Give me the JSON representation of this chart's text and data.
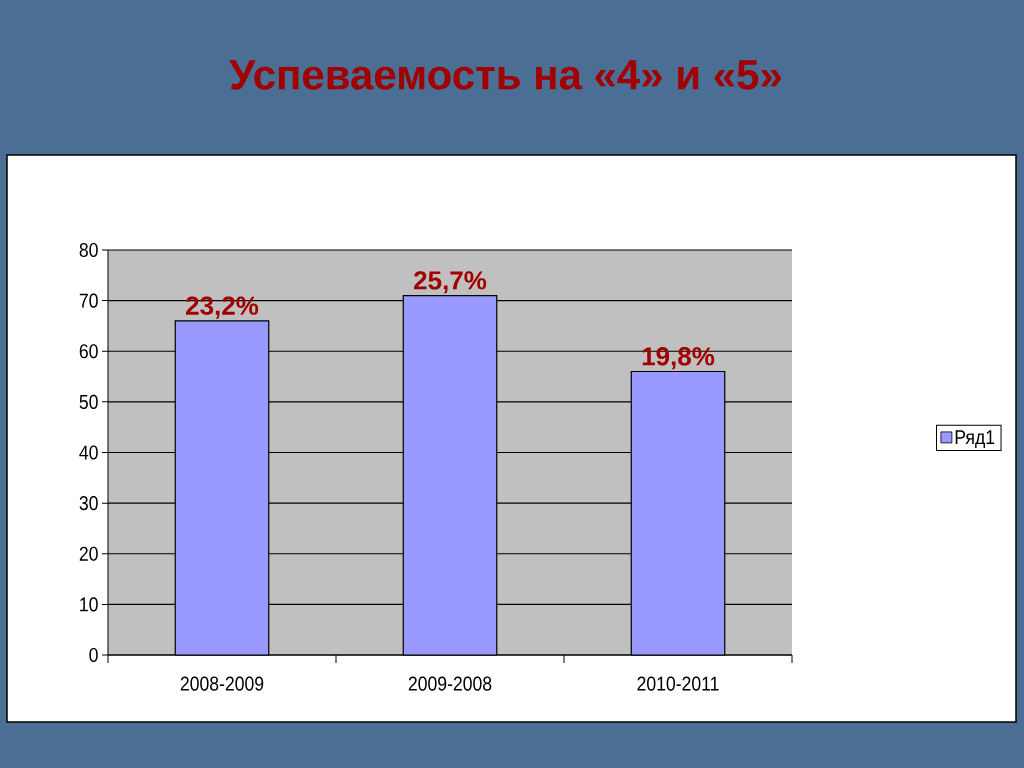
{
  "chart_data": {
    "type": "bar",
    "title": "Успеваемость на «4» и «5»",
    "categories": [
      "2008-2009",
      "2009-2008",
      "2010-2011"
    ],
    "series": [
      {
        "name": "Ряд1",
        "color": "#9999ff",
        "values": [
          66,
          71,
          56
        ]
      }
    ],
    "annotations": [
      {
        "text": "23,2%",
        "x": "2008-2009",
        "y": 66
      },
      {
        "text": "25,7%",
        "x": "2009-2008",
        "y": 71
      },
      {
        "text": "19,8%",
        "x": "2010-2011",
        "y": 56
      }
    ],
    "ylim": [
      0,
      80
    ],
    "yticks": [
      0,
      10,
      20,
      30,
      40,
      50,
      60,
      70,
      80
    ],
    "grid": "y",
    "legend": "right"
  }
}
